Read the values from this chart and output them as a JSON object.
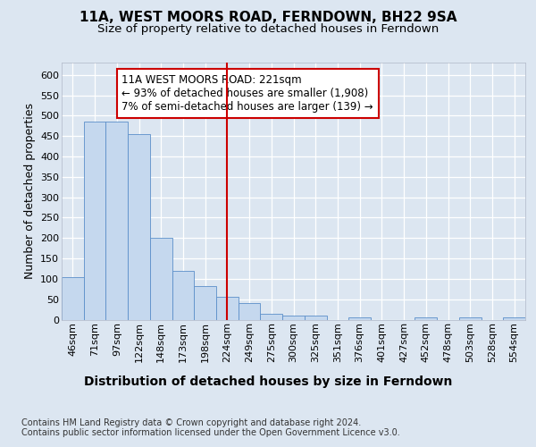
{
  "title": "11A, WEST MOORS ROAD, FERNDOWN, BH22 9SA",
  "subtitle": "Size of property relative to detached houses in Ferndown",
  "xlabel": "Distribution of detached houses by size in Ferndown",
  "ylabel": "Number of detached properties",
  "bins": [
    "46sqm",
    "71sqm",
    "97sqm",
    "122sqm",
    "148sqm",
    "173sqm",
    "198sqm",
    "224sqm",
    "249sqm",
    "275sqm",
    "300sqm",
    "325sqm",
    "351sqm",
    "376sqm",
    "401sqm",
    "427sqm",
    "452sqm",
    "478sqm",
    "503sqm",
    "528sqm",
    "554sqm"
  ],
  "values": [
    105,
    485,
    485,
    455,
    200,
    120,
    82,
    55,
    40,
    15,
    10,
    10,
    0,
    5,
    0,
    0,
    5,
    0,
    5,
    0,
    5
  ],
  "bar_color": "#c5d8ee",
  "bar_edge_color": "#5b8fc9",
  "bg_color": "#dce6f1",
  "plot_bg_color": "#dce6f1",
  "grid_color": "#ffffff",
  "vline_x_index": 7,
  "vline_color": "#cc0000",
  "annotation_line1": "11A WEST MOORS ROAD: 221sqm",
  "annotation_line2": "← 93% of detached houses are smaller (1,908)",
  "annotation_line3": "7% of semi-detached houses are larger (139) →",
  "annotation_box_color": "#ffffff",
  "annotation_box_edge_color": "#cc0000",
  "footnote": "Contains HM Land Registry data © Crown copyright and database right 2024.\nContains public sector information licensed under the Open Government Licence v3.0.",
  "ylim": [
    0,
    630
  ],
  "yticks": [
    0,
    50,
    100,
    150,
    200,
    250,
    300,
    350,
    400,
    450,
    500,
    550,
    600
  ],
  "title_fontsize": 11,
  "subtitle_fontsize": 9.5,
  "tick_fontsize": 8,
  "ylabel_fontsize": 9,
  "xlabel_fontsize": 10,
  "annot_fontsize": 8.5,
  "footnote_fontsize": 7
}
